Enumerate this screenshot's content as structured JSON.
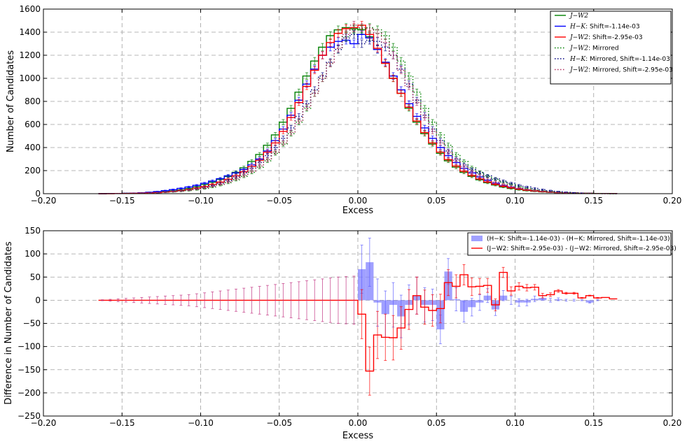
{
  "chart_data": [
    {
      "type": "line",
      "subtype": "step-histogram-with-errorbars",
      "xlabel": "Excess",
      "ylabel": "Number of Candidates",
      "xlim": [
        -0.2,
        0.2
      ],
      "ylim": [
        0,
        1600
      ],
      "xticks": [
        "−0.20",
        "−0.15",
        "−0.10",
        "−0.05",
        "0.00",
        "0.05",
        "0.10",
        "0.15",
        "0.20"
      ],
      "yticks": [
        "0",
        "200",
        "400",
        "600",
        "800",
        "1000",
        "1200",
        "1400",
        "1600"
      ],
      "grid": true,
      "legend_position": "top-right",
      "bin_width": 0.005,
      "bin_centers": [
        -0.1625,
        -0.1575,
        -0.1525,
        -0.1475,
        -0.1425,
        -0.1375,
        -0.1325,
        -0.1275,
        -0.1225,
        -0.1175,
        -0.1125,
        -0.1075,
        -0.1025,
        -0.0975,
        -0.0925,
        -0.0875,
        -0.0825,
        -0.0775,
        -0.0725,
        -0.0675,
        -0.0625,
        -0.0575,
        -0.0525,
        -0.0475,
        -0.0425,
        -0.0375,
        -0.0325,
        -0.0275,
        -0.0225,
        -0.0175,
        -0.0125,
        -0.0075,
        -0.0025,
        0.0025,
        0.0075,
        0.0125,
        0.0175,
        0.0225,
        0.0275,
        0.0325,
        0.0375,
        0.0425,
        0.0475,
        0.0525,
        0.0575,
        0.0625,
        0.0675,
        0.0725,
        0.0775,
        0.0825,
        0.0875,
        0.0925,
        0.0975,
        0.1025,
        0.1075,
        0.1125,
        0.1175,
        0.1225,
        0.1275,
        0.1325,
        0.1375,
        0.1425,
        0.1475,
        0.1525,
        0.1575,
        0.1625
      ],
      "series": [
        {
          "name": "J−W2",
          "legend_label_math": "J−W2",
          "legend_label_rest": "",
          "color": "#008000",
          "style": "solid",
          "values": [
            0,
            1,
            2,
            3,
            4,
            6,
            8,
            12,
            18,
            25,
            33,
            45,
            60,
            80,
            100,
            125,
            150,
            185,
            225,
            280,
            340,
            420,
            510,
            620,
            740,
            880,
            1020,
            1150,
            1270,
            1370,
            1420,
            1440,
            1430,
            1420,
            1360,
            1250,
            1130,
            1000,
            870,
            740,
            620,
            520,
            430,
            350,
            285,
            230,
            185,
            150,
            120,
            95,
            75,
            58,
            45,
            35,
            27,
            21,
            16,
            12,
            9,
            7,
            5,
            4,
            3,
            2,
            1,
            1
          ]
        },
        {
          "name": "H−K: Shift=-1.14e-03",
          "legend_label_math": "H−K",
          "legend_label_rest": ": Shift=-1.14e-03",
          "color": "#0000ff",
          "style": "solid",
          "values": [
            0,
            1,
            2,
            3,
            5,
            8,
            12,
            18,
            26,
            35,
            46,
            58,
            72,
            90,
            110,
            130,
            155,
            180,
            210,
            250,
            300,
            370,
            460,
            560,
            680,
            810,
            950,
            1080,
            1200,
            1270,
            1320,
            1330,
            1300,
            1380,
            1350,
            1250,
            1140,
            1020,
            900,
            780,
            670,
            570,
            480,
            400,
            330,
            270,
            220,
            180,
            145,
            115,
            90,
            70,
            55,
            43,
            33,
            25,
            19,
            14,
            10,
            8,
            6,
            4,
            3,
            2,
            1,
            1
          ]
        },
        {
          "name": "J−W2: Shift=-2.95e-03",
          "legend_label_math": "J−W2",
          "legend_label_rest": ": Shift=-2.95e-03",
          "color": "#ff0000",
          "style": "solid",
          "values": [
            0,
            0,
            1,
            2,
            3,
            4,
            6,
            9,
            14,
            20,
            27,
            36,
            48,
            62,
            80,
            100,
            125,
            155,
            190,
            235,
            290,
            360,
            440,
            540,
            660,
            790,
            930,
            1070,
            1200,
            1310,
            1390,
            1430,
            1440,
            1460,
            1380,
            1260,
            1130,
            1000,
            870,
            750,
            630,
            530,
            440,
            360,
            295,
            240,
            195,
            158,
            128,
            102,
            82,
            65,
            51,
            40,
            31,
            24,
            18,
            14,
            10,
            8,
            6,
            4,
            3,
            2,
            1,
            1
          ]
        },
        {
          "name": "J−W2: Mirrored",
          "legend_label_math": "J−W2",
          "legend_label_rest": ": Mirrored",
          "color": "#008000",
          "style": "dotted",
          "values": [
            1,
            1,
            2,
            3,
            4,
            5,
            7,
            9,
            12,
            16,
            21,
            27,
            35,
            45,
            58,
            75,
            95,
            120,
            150,
            185,
            230,
            285,
            350,
            430,
            520,
            620,
            740,
            870,
            1000,
            1130,
            1250,
            1360,
            1420,
            1430,
            1440,
            1420,
            1370,
            1270,
            1150,
            1020,
            880,
            740,
            620,
            510,
            420,
            340,
            280,
            225,
            185,
            150,
            125,
            100,
            80,
            60,
            45,
            33,
            25,
            18,
            12,
            8,
            6,
            4,
            3,
            2,
            1,
            0
          ]
        },
        {
          "name": "H−K: Mirrored, Shift=-1.14e-03",
          "legend_label_math": "H−K",
          "legend_label_rest": ": Mirrored, Shift=-1.14e-03",
          "color": "#000080",
          "style": "dotted",
          "values": [
            1,
            1,
            2,
            3,
            4,
            6,
            8,
            10,
            14,
            19,
            25,
            33,
            43,
            55,
            70,
            90,
            115,
            145,
            180,
            220,
            270,
            330,
            400,
            480,
            570,
            670,
            780,
            900,
            1020,
            1140,
            1250,
            1350,
            1380,
            1300,
            1330,
            1320,
            1270,
            1200,
            1080,
            950,
            810,
            680,
            560,
            460,
            370,
            300,
            250,
            210,
            180,
            155,
            130,
            110,
            90,
            72,
            58,
            46,
            35,
            26,
            18,
            12,
            8,
            5,
            3,
            2,
            1,
            0
          ]
        },
        {
          "name": "J−W2: Mirrored, Shift=-2.95e-03",
          "legend_label_math": "J−W2",
          "legend_label_rest": ": Mirrored, Shift=-2.95e-03",
          "color": "#b03060",
          "style": "dotted",
          "values": [
            1,
            1,
            2,
            3,
            4,
            6,
            8,
            10,
            14,
            18,
            24,
            31,
            40,
            51,
            65,
            82,
            102,
            128,
            158,
            195,
            240,
            295,
            360,
            440,
            530,
            630,
            750,
            870,
            1000,
            1130,
            1260,
            1380,
            1460,
            1440,
            1430,
            1390,
            1310,
            1200,
            1070,
            930,
            790,
            660,
            540,
            440,
            360,
            290,
            235,
            190,
            155,
            125,
            100,
            80,
            62,
            48,
            36,
            27,
            20,
            14,
            9,
            6,
            4,
            3,
            2,
            1,
            0,
            0
          ]
        }
      ]
    },
    {
      "type": "bar",
      "subtype": "difference-bars-and-step-with-errorbars",
      "xlabel": "Excess",
      "ylabel": "Difference in Number of Candidates",
      "xlim": [
        -0.2,
        0.2
      ],
      "ylim": [
        -250,
        150
      ],
      "xticks": [
        "−0.20",
        "−0.15",
        "−0.10",
        "−0.05",
        "0.00",
        "0.05",
        "0.10",
        "0.15",
        "0.20"
      ],
      "yticks": [
        "−250",
        "−200",
        "−150",
        "−100",
        "−50",
        "0",
        "50",
        "100",
        "150"
      ],
      "grid": true,
      "legend_position": "top-right",
      "bin_width": 0.005,
      "bin_centers": [
        -0.1625,
        -0.1575,
        -0.1525,
        -0.1475,
        -0.1425,
        -0.1375,
        -0.1325,
        -0.1275,
        -0.1225,
        -0.1175,
        -0.1125,
        -0.1075,
        -0.1025,
        -0.0975,
        -0.0925,
        -0.0875,
        -0.0825,
        -0.0775,
        -0.0725,
        -0.0675,
        -0.0625,
        -0.0575,
        -0.0525,
        -0.0475,
        -0.0425,
        -0.0375,
        -0.0325,
        -0.0275,
        -0.0225,
        -0.0175,
        -0.0125,
        -0.0075,
        -0.0025,
        0.0025,
        0.0075,
        0.0125,
        0.0175,
        0.0225,
        0.0275,
        0.0325,
        0.0375,
        0.0425,
        0.0475,
        0.0525,
        0.0575,
        0.0625,
        0.0675,
        0.0725,
        0.0775,
        0.0825,
        0.0875,
        0.0925,
        0.0975,
        0.1025,
        0.1075,
        0.1125,
        0.1175,
        0.1225,
        0.1275,
        0.1325,
        0.1375,
        0.1425,
        0.1475,
        0.1525,
        0.1575,
        0.1625
      ],
      "series": [
        {
          "name": "(H−K: Shift=-1.14e-03) - (H−K: Mirrored, Shift=-1.14e-03)",
          "color": "#8080ff",
          "style": "bar",
          "values": [
            0,
            0,
            0,
            0,
            0,
            0,
            0,
            0,
            0,
            0,
            0,
            0,
            0,
            0,
            0,
            0,
            0,
            0,
            0,
            0,
            0,
            0,
            0,
            0,
            0,
            0,
            0,
            0,
            0,
            0,
            0,
            0,
            0,
            67,
            82,
            -5,
            -30,
            -10,
            -35,
            -10,
            10,
            -10,
            -10,
            -63,
            62,
            2,
            -25,
            -15,
            -5,
            10,
            -20,
            10,
            0,
            -5,
            -5,
            3,
            5,
            0,
            2,
            0,
            0,
            0,
            -5,
            0,
            0,
            0
          ],
          "errors": [
            0,
            0,
            0,
            0,
            0,
            0,
            0,
            0,
            0,
            0,
            0,
            0,
            0,
            0,
            0,
            0,
            0,
            0,
            0,
            0,
            0,
            0,
            0,
            0,
            0,
            0,
            0,
            0,
            0,
            0,
            0,
            0,
            0,
            52,
            52,
            51,
            50,
            48,
            46,
            43,
            40,
            37,
            34,
            31,
            28,
            25,
            22,
            19,
            17,
            15,
            13,
            11,
            9,
            8,
            7,
            6,
            5,
            4,
            3,
            2,
            2,
            1,
            1,
            1,
            0,
            0
          ]
        },
        {
          "name": "(J−W2: Shift=-2.95e-03) - (J−W2: Mirrored, Shift=-2.95e-03)",
          "color": "#ff0000",
          "style": "step",
          "values": [
            0,
            0,
            0,
            0,
            0,
            0,
            0,
            0,
            0,
            0,
            0,
            0,
            0,
            0,
            0,
            0,
            0,
            0,
            0,
            0,
            0,
            0,
            0,
            0,
            0,
            0,
            0,
            0,
            0,
            0,
            0,
            0,
            0,
            -30,
            -153,
            -75,
            -80,
            -81,
            -60,
            -20,
            10,
            -15,
            -22,
            -18,
            38,
            30,
            55,
            29,
            30,
            32,
            -10,
            60,
            20,
            30,
            27,
            28,
            10,
            12,
            20,
            15,
            15,
            5,
            10,
            5,
            6,
            3
          ],
          "errors": [
            1,
            2,
            3,
            4,
            5,
            6,
            7,
            8,
            9,
            10,
            11,
            12,
            14,
            16,
            18,
            20,
            22,
            24,
            26,
            28,
            30,
            32,
            34,
            36,
            38,
            40,
            42,
            44,
            46,
            48,
            50,
            51,
            52,
            53,
            52,
            51,
            50,
            48,
            46,
            43,
            40,
            37,
            34,
            31,
            28,
            25,
            22,
            19,
            17,
            15,
            13,
            11,
            9,
            8,
            7,
            6,
            5,
            4,
            3,
            2,
            2,
            1,
            1,
            1,
            0,
            0
          ]
        }
      ]
    }
  ]
}
